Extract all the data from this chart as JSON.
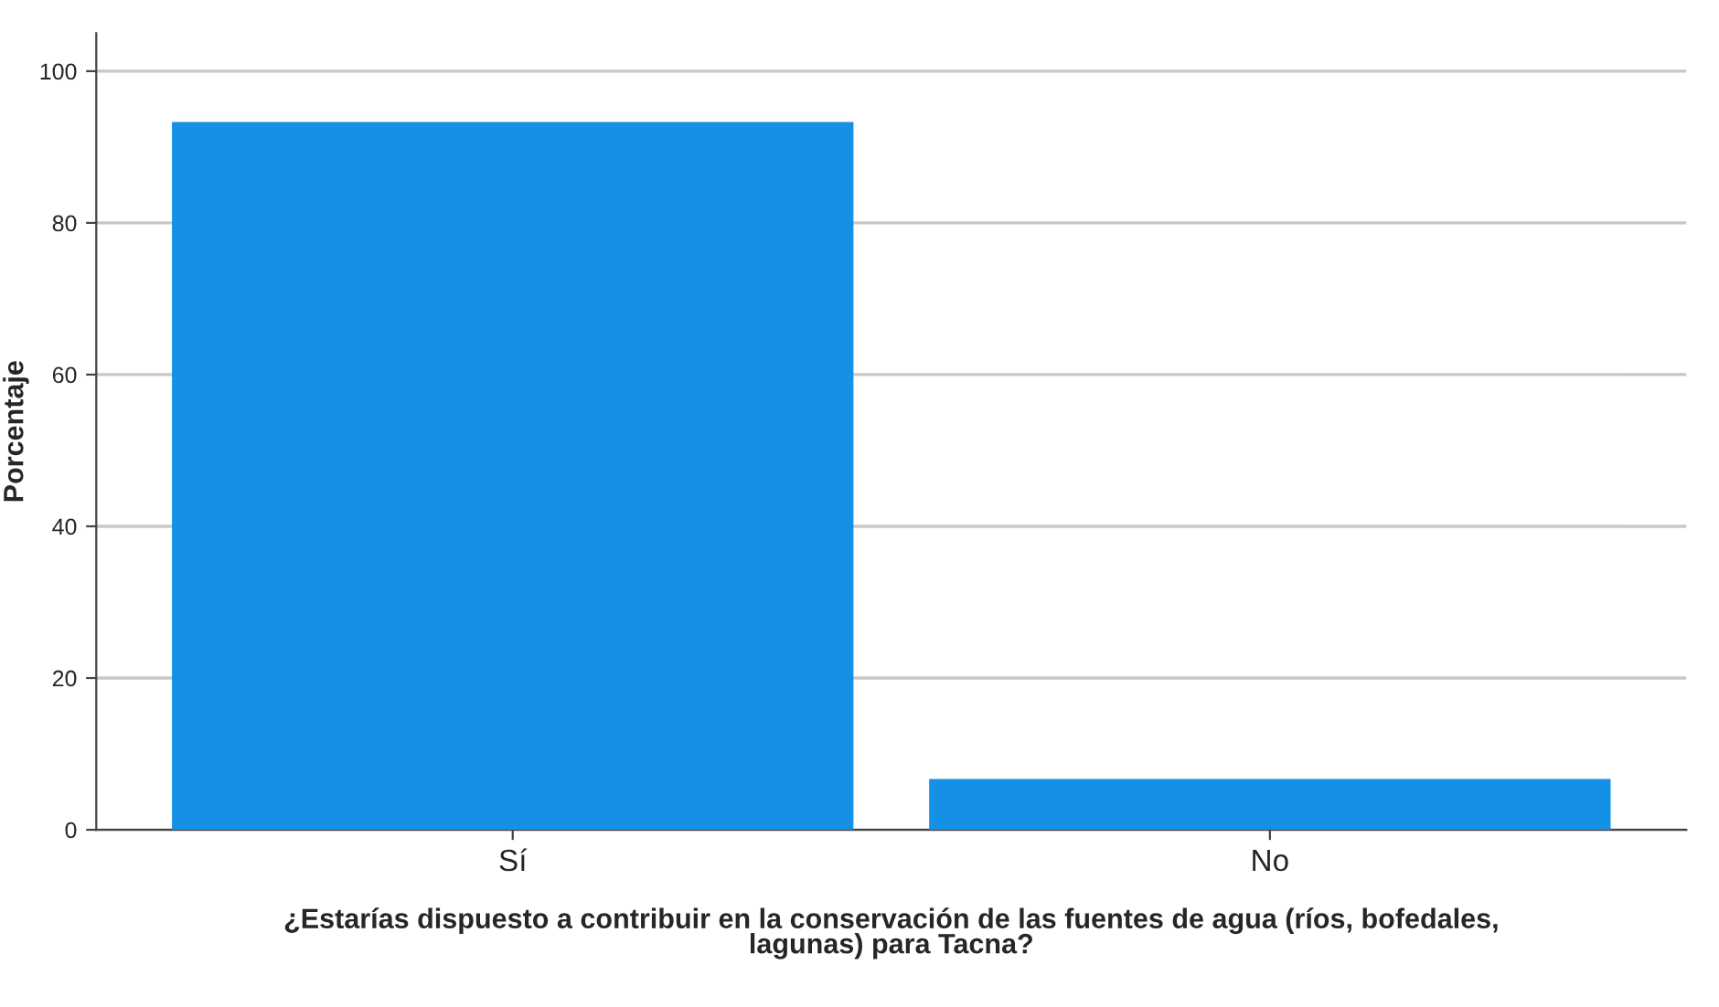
{
  "chart_data": {
    "type": "bar",
    "ylabel": "Porcentaje",
    "xlabel": "¿Estarías dispuesto a contribuir en la conservación de las fuentes de agua (ríos, bofedales,\nlagunas) para Tacna?",
    "categories": [
      "Sí",
      "No"
    ],
    "values": [
      93.3,
      6.7
    ],
    "color": "#1490e6",
    "ylim": [
      0,
      105
    ],
    "yticks": [
      0,
      20,
      40,
      60,
      80,
      100
    ],
    "grid": "y"
  }
}
